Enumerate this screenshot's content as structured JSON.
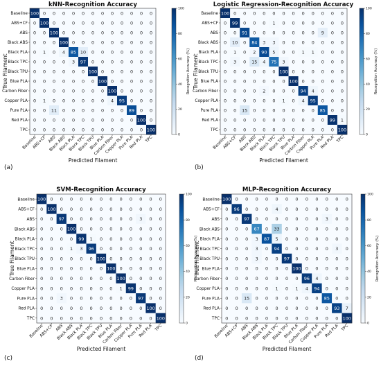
{
  "figure": {
    "panel_labels": [
      "(a)",
      "(b)",
      "(c)",
      "(d)"
    ]
  },
  "colorbar": {
    "label": "Recognition Accuracy (%)",
    "ticks": [
      0,
      20,
      40,
      60,
      80,
      100
    ]
  },
  "chart_data": [
    {
      "type": "heatmap",
      "title": "kNN-Recognition Accuracy",
      "xlabel": "Predicted Filament",
      "ylabel": "True Filament",
      "categories": [
        "Baseline",
        "ABS+CF",
        "ABS",
        "Black ABS",
        "Black PLA",
        "Black TPC",
        "Black TPU",
        "Blue PLA",
        "Carbon Fiber",
        "Copper PLA",
        "Pure PLA",
        "Red PLA",
        "TPC"
      ],
      "zlim": [
        0,
        100
      ],
      "colorscale": [
        "#f7fbff",
        "#08306b"
      ],
      "values": [
        [
          100,
          0,
          0,
          0,
          0,
          0,
          0,
          0,
          0,
          0,
          0,
          0,
          0
        ],
        [
          0,
          100,
          0,
          0,
          0,
          0,
          0,
          0,
          0,
          0,
          0,
          0,
          0
        ],
        [
          0,
          0,
          100,
          0,
          0,
          0,
          0,
          0,
          0,
          0,
          0,
          0,
          0
        ],
        [
          0,
          0,
          0,
          100,
          0,
          0,
          0,
          0,
          0,
          0,
          0,
          0,
          0
        ],
        [
          0,
          1,
          0,
          4,
          85,
          10,
          0,
          0,
          0,
          0,
          0,
          0,
          0
        ],
        [
          0,
          0,
          0,
          0,
          3,
          97,
          0,
          0,
          0,
          0,
          0,
          0,
          0
        ],
        [
          0,
          0,
          0,
          0,
          0,
          0,
          100,
          0,
          0,
          0,
          0,
          0,
          0
        ],
        [
          0,
          0,
          0,
          0,
          0,
          0,
          0,
          100,
          0,
          0,
          0,
          0,
          0
        ],
        [
          0,
          0,
          0,
          0,
          0,
          0,
          0,
          0,
          100,
          0,
          0,
          0,
          0
        ],
        [
          0,
          1,
          0,
          0,
          0,
          0,
          0,
          0,
          4,
          95,
          0,
          0,
          0
        ],
        [
          0,
          0,
          11,
          0,
          0,
          0,
          0,
          0,
          0,
          0,
          89,
          0,
          0
        ],
        [
          0,
          0,
          0,
          0,
          0,
          0,
          0,
          0,
          0,
          0,
          0,
          100,
          0
        ],
        [
          0,
          0,
          0,
          0,
          0,
          0,
          0,
          0,
          0,
          0,
          0,
          0,
          100
        ]
      ]
    },
    {
      "type": "heatmap",
      "title": "Logistic Regression-Recognition Accuracy",
      "xlabel": "Predicted Filament",
      "ylabel": "True Filament",
      "categories": [
        "Baseline",
        "ABS+CF",
        "ABS",
        "Black ABS",
        "Black PLA",
        "Black TPC",
        "Black TPU",
        "Blue PLA",
        "Carbon Fiber",
        "Copper PLA",
        "Pure PLA",
        "Red PLA",
        "TPC"
      ],
      "zlim": [
        0,
        100
      ],
      "colorscale": [
        "#f7fbff",
        "#08306b"
      ],
      "values": [
        [
          100,
          0,
          0,
          0,
          0,
          0,
          0,
          0,
          0,
          0,
          0,
          0,
          0
        ],
        [
          0,
          99,
          0,
          0,
          0,
          1,
          0,
          0,
          0,
          0,
          0,
          0,
          0
        ],
        [
          0,
          0,
          91,
          0,
          0,
          0,
          0,
          0,
          0,
          0,
          9,
          0,
          0
        ],
        [
          0,
          10,
          0,
          84,
          3,
          3,
          0,
          0,
          0,
          0,
          0,
          0,
          0
        ],
        [
          0,
          1,
          0,
          2,
          90,
          5,
          0,
          0,
          1,
          1,
          0,
          0,
          0
        ],
        [
          0,
          3,
          0,
          15,
          4,
          75,
          3,
          0,
          0,
          0,
          0,
          0,
          0
        ],
        [
          0,
          0,
          0,
          0,
          0,
          0,
          100,
          0,
          0,
          0,
          0,
          0,
          0
        ],
        [
          0,
          0,
          0,
          0,
          0,
          0,
          0,
          100,
          0,
          0,
          0,
          0,
          0
        ],
        [
          0,
          0,
          0,
          0,
          2,
          0,
          0,
          0,
          94,
          4,
          0,
          0,
          0
        ],
        [
          0,
          0,
          0,
          0,
          0,
          0,
          1,
          0,
          4,
          95,
          0,
          0,
          0
        ],
        [
          0,
          0,
          15,
          0,
          0,
          0,
          0,
          0,
          0,
          0,
          85,
          0,
          0
        ],
        [
          0,
          0,
          0,
          0,
          0,
          0,
          0,
          0,
          0,
          0,
          0,
          99,
          1
        ],
        [
          0,
          0,
          0,
          0,
          0,
          0,
          0,
          0,
          0,
          0,
          0,
          0,
          100
        ]
      ]
    },
    {
      "type": "heatmap",
      "title": "SVM-Recognition Accuracy",
      "xlabel": "Predicted Filament",
      "ylabel": "True Filament",
      "categories": [
        "Baseline",
        "ABS+CF",
        "ABS",
        "Black ABS",
        "Black PLA",
        "Black TPC",
        "Black TPU",
        "Blue PLA",
        "Carbon Fiber",
        "Copper PLA",
        "Pure PLA",
        "Red PLA",
        "TPC"
      ],
      "zlim": [
        0,
        100
      ],
      "colorscale": [
        "#f7fbff",
        "#08306b"
      ],
      "values": [
        [
          100,
          0,
          0,
          0,
          0,
          0,
          0,
          0,
          0,
          0,
          0,
          0,
          0
        ],
        [
          0,
          100,
          0,
          0,
          0,
          0,
          0,
          0,
          0,
          0,
          0,
          0,
          0
        ],
        [
          0,
          0,
          97,
          0,
          0,
          0,
          0,
          0,
          0,
          0,
          3,
          0,
          0
        ],
        [
          0,
          0,
          0,
          100,
          0,
          0,
          0,
          0,
          0,
          0,
          0,
          0,
          0
        ],
        [
          0,
          0,
          0,
          0,
          99,
          1,
          0,
          0,
          0,
          0,
          0,
          0,
          0
        ],
        [
          0,
          0,
          0,
          1,
          3,
          96,
          0,
          0,
          0,
          0,
          0,
          0,
          0
        ],
        [
          0,
          0,
          0,
          0,
          0,
          0,
          100,
          0,
          0,
          0,
          0,
          0,
          0
        ],
        [
          0,
          0,
          0,
          0,
          0,
          0,
          0,
          100,
          0,
          0,
          0,
          0,
          0
        ],
        [
          0,
          0,
          0,
          0,
          0,
          0,
          0,
          0,
          100,
          0,
          0,
          0,
          0
        ],
        [
          0,
          0,
          0,
          0,
          0,
          0,
          0,
          0,
          1,
          99,
          0,
          0,
          0
        ],
        [
          0,
          0,
          3,
          0,
          0,
          0,
          0,
          0,
          0,
          0,
          97,
          0,
          0
        ],
        [
          0,
          0,
          0,
          0,
          0,
          0,
          0,
          0,
          0,
          0,
          0,
          100,
          0
        ],
        [
          0,
          0,
          0,
          0,
          0,
          0,
          0,
          0,
          0,
          0,
          0,
          0,
          100
        ]
      ]
    },
    {
      "type": "heatmap",
      "title": "MLP-Recognition Accuracy",
      "xlabel": "Predicted Filament",
      "ylabel": "True Filament",
      "categories": [
        "Baseline",
        "ABS+CF",
        "ABS",
        "Black ABS",
        "Black PLA",
        "Black TPC",
        "Black TPU",
        "Blue PLA",
        "Carbon Fiber",
        "Copper PLA",
        "Pure PLA",
        "Red PLA",
        "TPC"
      ],
      "zlim": [
        0,
        100
      ],
      "colorscale": [
        "#f7fbff",
        "#08306b"
      ],
      "values": [
        [
          100,
          0,
          0,
          0,
          0,
          0,
          0,
          0,
          0,
          0,
          0,
          0,
          0
        ],
        [
          0,
          96,
          0,
          0,
          0,
          4,
          0,
          0,
          0,
          0,
          0,
          0,
          0
        ],
        [
          0,
          0,
          97,
          0,
          0,
          0,
          0,
          0,
          0,
          0,
          3,
          0,
          0
        ],
        [
          0,
          0,
          0,
          67,
          0,
          33,
          0,
          0,
          0,
          0,
          0,
          0,
          0
        ],
        [
          0,
          0,
          0,
          3,
          87,
          5,
          0,
          0,
          0,
          0,
          0,
          0,
          0
        ],
        [
          0,
          0,
          0,
          3,
          0,
          94,
          0,
          0,
          0,
          0,
          0,
          3,
          0
        ],
        [
          0,
          0,
          0,
          3,
          0,
          0,
          97,
          0,
          0,
          0,
          0,
          0,
          0
        ],
        [
          0,
          0,
          0,
          0,
          0,
          0,
          0,
          100,
          0,
          0,
          0,
          0,
          0
        ],
        [
          0,
          0,
          0,
          0,
          0,
          0,
          0,
          0,
          96,
          4,
          0,
          0,
          0
        ],
        [
          0,
          0,
          0,
          0,
          0,
          1,
          0,
          1,
          4,
          94,
          0,
          0,
          0
        ],
        [
          0,
          0,
          15,
          0,
          0,
          0,
          0,
          0,
          0,
          0,
          85,
          0,
          0
        ],
        [
          0,
          0,
          0,
          0,
          0,
          0,
          0,
          0,
          0,
          0,
          0,
          93,
          7
        ],
        [
          0,
          0,
          0,
          0,
          0,
          0,
          0,
          0,
          0,
          0,
          0,
          0,
          100
        ]
      ]
    }
  ]
}
